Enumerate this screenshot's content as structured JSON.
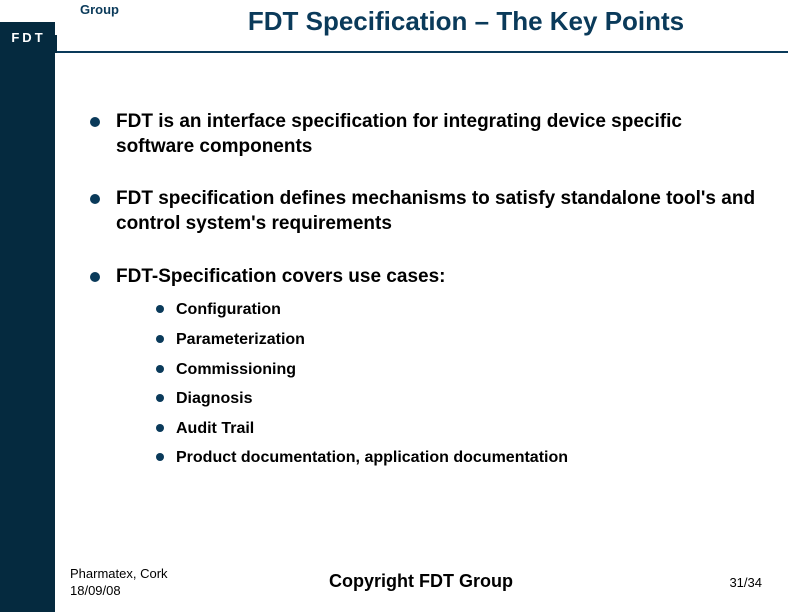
{
  "colors": {
    "brand_dark": "#052a3f",
    "brand_blue": "#0a3a5a",
    "text": "#000000",
    "background": "#ffffff"
  },
  "typography": {
    "title_fontsize_pt": 20,
    "bullet_fontsize_pt": 14,
    "sub_bullet_fontsize_pt": 12,
    "footer_fontsize_pt": 10,
    "font_family": "Arial",
    "bullet_weight": "bold"
  },
  "header": {
    "group_label": "Group",
    "logo_text": "FDT",
    "title": "FDT Specification – The Key Points"
  },
  "bullets": [
    {
      "text": "FDT is an interface specification for integrating device specific software components"
    },
    {
      "text": "FDT specification defines mechanisms to satisfy standalone tool's and control system's requirements"
    },
    {
      "text": "FDT-Specification covers use cases:",
      "sub": [
        "Configuration",
        "Parameterization",
        "Commissioning",
        "Diagnosis",
        "Audit Trail",
        "Product documentation, application documentation"
      ]
    }
  ],
  "footer": {
    "left_line1": "Pharmatex, Cork",
    "left_line2": "18/09/08",
    "center": "Copyright FDT Group",
    "page_current": 31,
    "page_total": 34
  }
}
